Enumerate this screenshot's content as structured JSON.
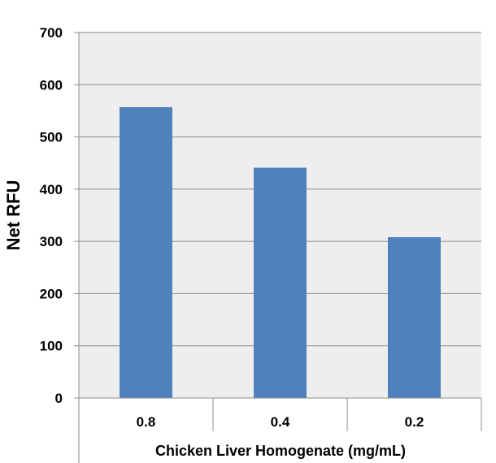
{
  "chart_data": {
    "type": "bar",
    "title": "",
    "xlabel": "Chicken Liver Homogenate (mg/mL)",
    "ylabel": "Net RFU",
    "categories": [
      "0.8",
      "0.4",
      "0.2"
    ],
    "series": [
      {
        "values": [
          557,
          441,
          308
        ]
      }
    ],
    "ylim": [
      0,
      700
    ],
    "yticks": [
      "0",
      "100",
      "200",
      "300",
      "400",
      "500",
      "600",
      "700"
    ],
    "grid": true,
    "legend": "none",
    "colors": {
      "bar": "#4F81BD",
      "plot_bg": "#EEEEEE",
      "grid": "#8C8C8C"
    }
  }
}
